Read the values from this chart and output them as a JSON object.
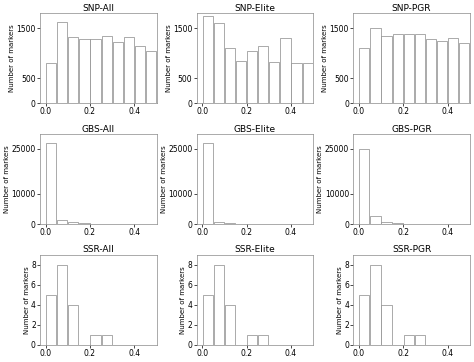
{
  "titles": [
    [
      "SNP-All",
      "SNP-Elite",
      "SNP-PGR"
    ],
    [
      "GBS-All",
      "GBS-Elite",
      "GBS-PGR"
    ],
    [
      "SSR-All",
      "SSR-Elite",
      "SSR-PGR"
    ]
  ],
  "ylabel": "Number of markers",
  "snp_bins": [
    0.0,
    0.05,
    0.1,
    0.15,
    0.2,
    0.25,
    0.3,
    0.35,
    0.4,
    0.45,
    0.5
  ],
  "snp_all": [
    800,
    1620,
    1330,
    1290,
    1290,
    1350,
    1220,
    1330,
    1150,
    1050
  ],
  "snp_elite": [
    1750,
    1600,
    1100,
    850,
    1050,
    1150,
    820,
    1300,
    800,
    800
  ],
  "snp_pgr": [
    1100,
    1500,
    1350,
    1380,
    1380,
    1380,
    1280,
    1250,
    1300,
    1200
  ],
  "gbs_all": [
    27000,
    1200,
    600,
    200,
    150,
    100,
    80,
    60,
    50,
    40
  ],
  "gbs_elite": [
    27000,
    600,
    300,
    150,
    100,
    80,
    60,
    50,
    40,
    30
  ],
  "gbs_pgr": [
    25000,
    2500,
    500,
    200,
    120,
    80,
    60,
    50,
    40,
    30
  ],
  "ssr_all": [
    5,
    8,
    4,
    0,
    1,
    1,
    0,
    0,
    0,
    0
  ],
  "ssr_elite": [
    5,
    8,
    4,
    0,
    1,
    1,
    0,
    0,
    0,
    0
  ],
  "ssr_pgr": [
    5,
    8,
    4,
    0,
    1,
    1,
    0,
    0,
    0,
    0
  ],
  "bar_color": "white",
  "bar_edgecolor": "#888888",
  "bg_color": "white",
  "title_fontsize": 6.5,
  "axis_fontsize": 5.5,
  "ylabel_fontsize": 5.0
}
